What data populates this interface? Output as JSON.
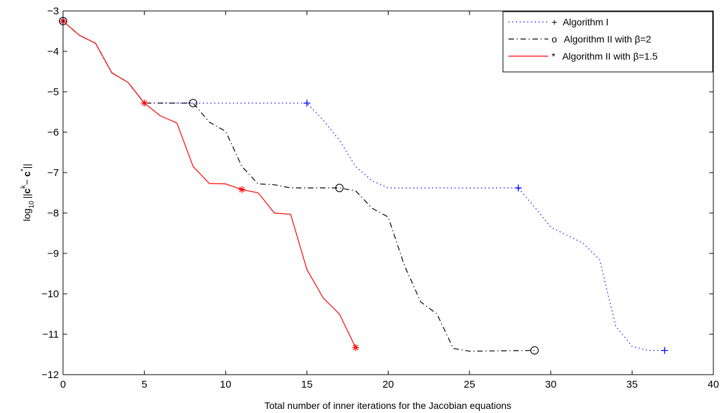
{
  "chart_data": {
    "type": "line",
    "xlabel": "Total number of inner iterations for the Jacobian equations",
    "ylabel_parts": {
      "prefix": "log",
      "sub": "10",
      "norm": "||",
      "c1": "c",
      "k": "k",
      "minus": "− ",
      "c2": "c",
      "star": "*",
      "norm_end": "||"
    },
    "xlim": [
      0,
      40
    ],
    "ylim": [
      -12,
      -3
    ],
    "xticks": [
      0,
      5,
      10,
      15,
      20,
      25,
      30,
      35,
      40
    ],
    "yticks": [
      -12,
      -11,
      -10,
      -9,
      -8,
      -7,
      -6,
      -5,
      -4,
      -3
    ],
    "xtick_labels": [
      "0",
      "5",
      "10",
      "15",
      "20",
      "25",
      "30",
      "35",
      "40"
    ],
    "ytick_labels": [
      "−12",
      "−11",
      "−10",
      "−9",
      "−8",
      "−7",
      "−6",
      "−5",
      "−4",
      "−3"
    ],
    "grid": false,
    "legend_position": "top-right",
    "legend": [
      {
        "marker_text": "+",
        "label": "Algorithm I"
      },
      {
        "marker_text": "o",
        "label": "Algorithm II with ",
        "beta": "β",
        "value": "=2"
      },
      {
        "marker_text": "*",
        "label": "Algorithm II with ",
        "beta": "β",
        "value": "=1.5"
      }
    ],
    "series": [
      {
        "name": "Algorithm I",
        "color": "#0000ff",
        "style": "dotted",
        "marker": "plus",
        "points": [
          [
            0,
            -3.25
          ],
          [
            1,
            -3.6
          ],
          [
            2,
            -3.8
          ],
          [
            3,
            -4.53
          ],
          [
            4,
            -4.77
          ],
          [
            5,
            -5.28
          ],
          [
            15,
            -5.28
          ],
          [
            16,
            -5.7
          ],
          [
            17,
            -6.2
          ],
          [
            18,
            -6.85
          ],
          [
            19,
            -7.2
          ],
          [
            20,
            -7.38
          ],
          [
            28,
            -7.38
          ],
          [
            29,
            -7.85
          ],
          [
            30,
            -8.35
          ],
          [
            31,
            -8.55
          ],
          [
            32,
            -8.75
          ],
          [
            33,
            -9.15
          ],
          [
            34,
            -10.8
          ],
          [
            35,
            -11.3
          ],
          [
            36,
            -11.4
          ],
          [
            37,
            -11.4
          ]
        ],
        "marker_points": [
          [
            0,
            -3.25
          ],
          [
            15,
            -5.28
          ],
          [
            28,
            -7.38
          ],
          [
            37,
            -11.4
          ]
        ]
      },
      {
        "name": "Algorithm II with β=2",
        "color": "#000000",
        "style": "dashdot",
        "marker": "circle",
        "points": [
          [
            0,
            -3.25
          ],
          [
            1,
            -3.6
          ],
          [
            2,
            -3.8
          ],
          [
            3,
            -4.53
          ],
          [
            4,
            -4.77
          ],
          [
            5,
            -5.28
          ],
          [
            8,
            -5.28
          ],
          [
            9,
            -5.75
          ],
          [
            10,
            -5.98
          ],
          [
            11,
            -6.85
          ],
          [
            12,
            -7.28
          ],
          [
            13,
            -7.3
          ],
          [
            14,
            -7.38
          ],
          [
            17,
            -7.38
          ],
          [
            18,
            -7.45
          ],
          [
            19,
            -7.88
          ],
          [
            20,
            -8.1
          ],
          [
            21,
            -9.3
          ],
          [
            22,
            -10.2
          ],
          [
            23,
            -10.5
          ],
          [
            24,
            -11.35
          ],
          [
            25,
            -11.42
          ],
          [
            29,
            -11.4
          ]
        ],
        "marker_points": [
          [
            0,
            -3.25
          ],
          [
            8,
            -5.28
          ],
          [
            17,
            -7.38
          ],
          [
            29,
            -11.4
          ]
        ]
      },
      {
        "name": "Algorithm II with β=1.5",
        "color": "#ff0000",
        "style": "solid",
        "marker": "asterisk",
        "points": [
          [
            0,
            -3.25
          ],
          [
            1,
            -3.6
          ],
          [
            2,
            -3.8
          ],
          [
            3,
            -4.53
          ],
          [
            4,
            -4.77
          ],
          [
            5,
            -5.28
          ],
          [
            6,
            -5.6
          ],
          [
            7,
            -5.77
          ],
          [
            8,
            -6.85
          ],
          [
            9,
            -7.27
          ],
          [
            10,
            -7.28
          ],
          [
            11,
            -7.42
          ],
          [
            12,
            -7.5
          ],
          [
            13,
            -8.0
          ],
          [
            14,
            -8.03
          ],
          [
            15,
            -9.4
          ],
          [
            16,
            -10.1
          ],
          [
            17,
            -10.5
          ],
          [
            18,
            -11.33
          ]
        ],
        "marker_points": [
          [
            0,
            -3.25
          ],
          [
            5,
            -5.28
          ],
          [
            11,
            -7.42
          ],
          [
            18,
            -11.33
          ]
        ]
      }
    ]
  }
}
